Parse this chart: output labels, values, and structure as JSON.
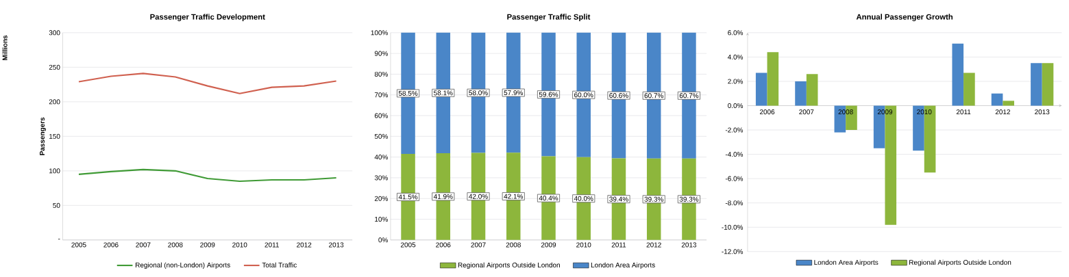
{
  "chart_data": [
    {
      "type": "line",
      "title": "Passenger Traffic Development",
      "ylabel": "Passengers",
      "annotations": [
        "Millions"
      ],
      "categories": [
        "2005",
        "2006",
        "2007",
        "2008",
        "2009",
        "2010",
        "2011",
        "2012",
        "2013"
      ],
      "series": [
        {
          "name": "Regional (non-London) Airports",
          "color": "#3f9a35",
          "values": [
            95,
            99,
            102,
            100,
            89,
            85,
            87,
            87,
            90
          ]
        },
        {
          "name": "Total Traffic",
          "color": "#d0604f",
          "values": [
            229,
            237,
            241,
            236,
            223,
            212,
            221,
            223,
            230
          ]
        }
      ],
      "ylim": [
        0,
        300
      ],
      "yticks": [
        {
          "value": 0,
          "label": "-"
        },
        50,
        100,
        150,
        200,
        250,
        300
      ],
      "grid": "y",
      "legend": "bottom",
      "marker": "none",
      "line_style": "solid"
    },
    {
      "type": "bar",
      "title": "Passenger Traffic Split",
      "stacked": true,
      "categories": [
        "2005",
        "2006",
        "2007",
        "2008",
        "2009",
        "2010",
        "2011",
        "2012",
        "2013"
      ],
      "series": [
        {
          "name": "Regional Airports Outside London",
          "color": "#8db63c",
          "values": [
            41.5,
            41.9,
            42.0,
            42.1,
            40.4,
            40.0,
            39.4,
            39.3,
            39.3
          ],
          "value_labels": [
            "41.5%",
            "41.9%",
            "42.0%",
            "42.1%",
            "40.4%",
            "40.0%",
            "39.4%",
            "39.3%",
            "39.3%"
          ]
        },
        {
          "name": "London Area Airports",
          "color": "#4a86c8",
          "values": [
            58.5,
            58.1,
            58.0,
            57.9,
            59.6,
            60.0,
            60.6,
            60.7,
            60.7
          ],
          "value_labels": [
            "58.5%",
            "58.1%",
            "58.0%",
            "57.9%",
            "59.6%",
            "60.0%",
            "60.6%",
            "60.7%",
            "60.7%"
          ]
        }
      ],
      "ylim": [
        0,
        100
      ],
      "yticks": [
        {
          "value": 0,
          "label": "0%"
        },
        {
          "value": 10,
          "label": "10%"
        },
        {
          "value": 20,
          "label": "20%"
        },
        {
          "value": 30,
          "label": "30%"
        },
        {
          "value": 40,
          "label": "40%"
        },
        {
          "value": 50,
          "label": "50%"
        },
        {
          "value": 60,
          "label": "60%"
        },
        {
          "value": 70,
          "label": "70%"
        },
        {
          "value": 80,
          "label": "80%"
        },
        {
          "value": 90,
          "label": "90%"
        },
        {
          "value": 100,
          "label": "100%"
        }
      ],
      "grid": "y",
      "legend": "bottom"
    },
    {
      "type": "bar",
      "title": "Annual Passenger Growth",
      "categories": [
        "2006",
        "2007",
        "2008",
        "2009",
        "2010",
        "2011",
        "2012",
        "2013"
      ],
      "series": [
        {
          "name": "London Area Airports",
          "color": "#4a86c8",
          "values": [
            2.7,
            2.0,
            -2.2,
            -3.5,
            -3.7,
            5.1,
            1.0,
            3.5
          ]
        },
        {
          "name": "Regional Airports Outside London",
          "color": "#8db63c",
          "values": [
            4.4,
            2.6,
            -2.0,
            -9.8,
            -5.5,
            2.7,
            0.4,
            3.5
          ]
        }
      ],
      "ylim": [
        -12,
        6
      ],
      "yticks": [
        {
          "value": -12,
          "label": "-12.0%"
        },
        {
          "value": -10,
          "label": "-10.0%"
        },
        {
          "value": -8,
          "label": "-8.0%"
        },
        {
          "value": -6,
          "label": "-6.0%"
        },
        {
          "value": -4,
          "label": "-4.0%"
        },
        {
          "value": -2,
          "label": "-2.0%"
        },
        {
          "value": 0,
          "label": "0.0%"
        },
        {
          "value": 2,
          "label": "2.0%"
        },
        {
          "value": 4,
          "label": "4.0%"
        },
        {
          "value": 6,
          "label": "6.0%"
        }
      ],
      "grid": "y",
      "legend": "bottom"
    }
  ]
}
